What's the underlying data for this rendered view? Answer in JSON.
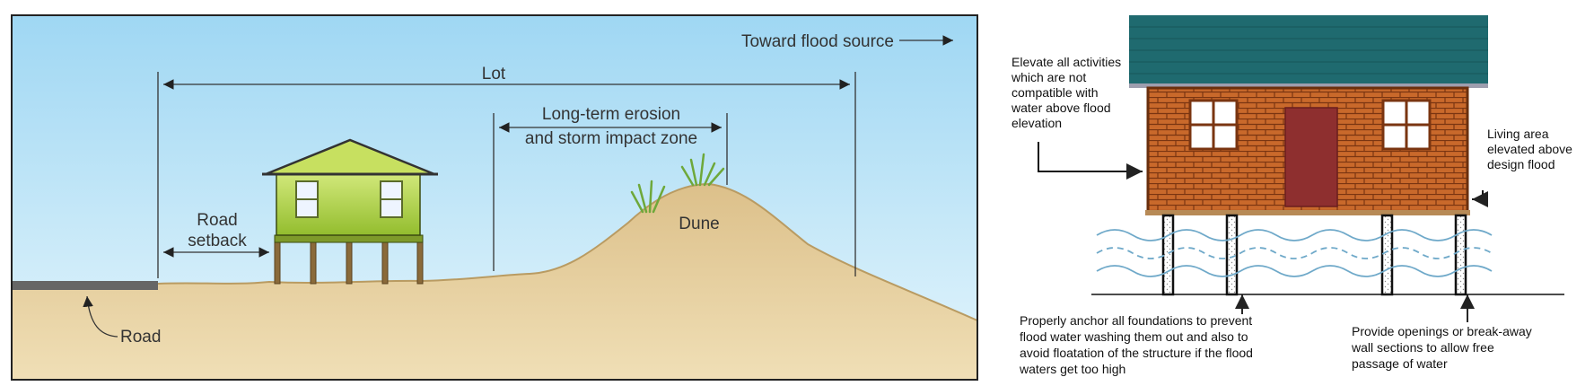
{
  "left_panel": {
    "toward_flood_source": "Toward flood source",
    "lot": "Lot",
    "erosion_zone_line1": "Long-term erosion",
    "erosion_zone_line2": "and storm impact zone",
    "road_setback_line1": "Road",
    "road_setback_line2": "setback",
    "dune": "Dune",
    "road": "Road",
    "colors": {
      "sky_top": "#9fd7f3",
      "sky_bottom": "#e4f5fc",
      "sand": "#ecd7a8",
      "house": "#a8cc3e",
      "road": "#666666"
    }
  },
  "right_panel": {
    "note_elevate_activities": [
      "Elevate all activities",
      "which are not",
      "compatible with",
      "water above flood",
      "elevation"
    ],
    "note_living_area": [
      "Living area",
      "elevated above",
      "design flood"
    ],
    "note_anchor_foundations": [
      "Properly anchor all foundations to prevent",
      "flood water washing them out and also to",
      "avoid floatation of the structure if the flood",
      "waters get too high"
    ],
    "note_openings": [
      "Provide openings or break-away",
      "wall sections to allow free",
      "passage of water"
    ],
    "colors": {
      "roof": "#1f6a6f",
      "brick": "#c9692b",
      "door": "#8e2f2f",
      "water": "#6fa9c9"
    }
  }
}
